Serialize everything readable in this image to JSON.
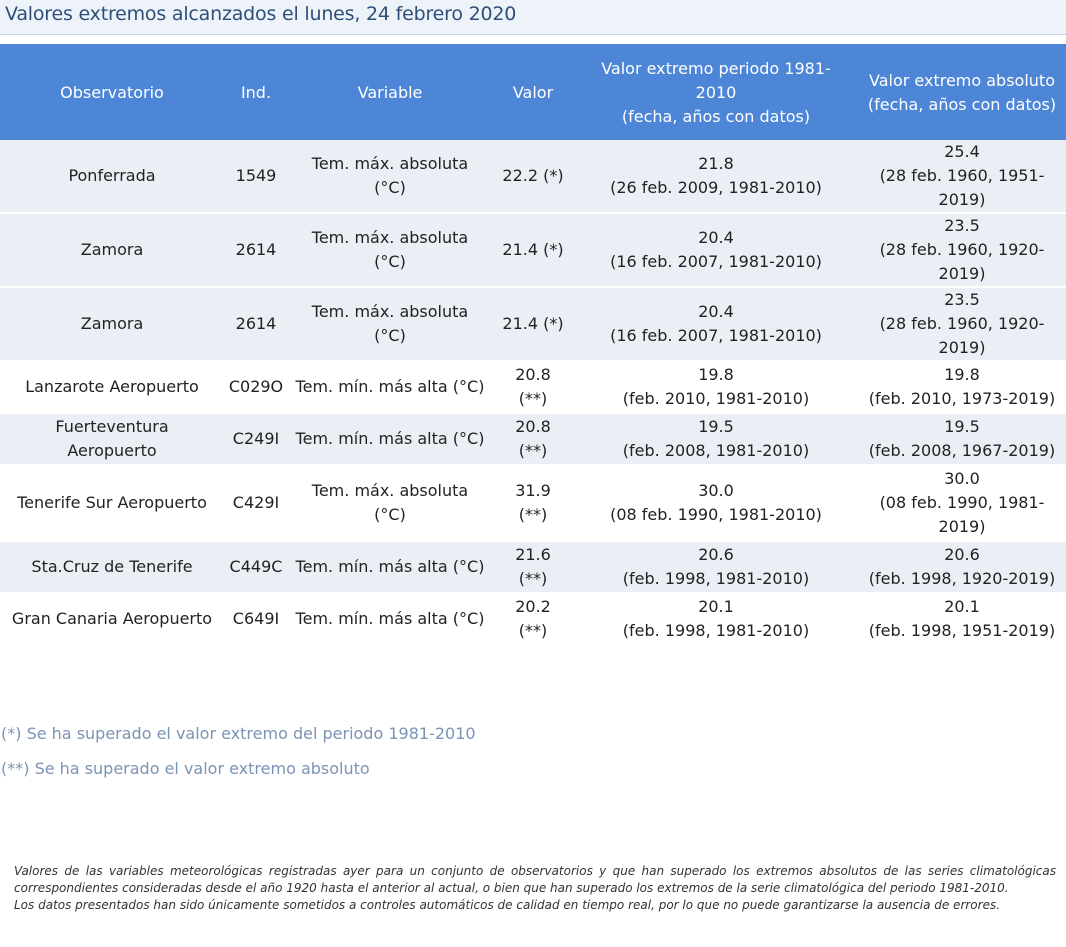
{
  "title": "Valores extremos alcanzados el lunes, 24 febrero 2020",
  "table": {
    "headers": [
      "Observatorio",
      "Ind.",
      "Variable",
      "Valor",
      "Valor extremo periodo 1981-\n2010\n(fecha, años con datos)",
      "Valor extremo absoluto\n(fecha, años con datos)"
    ],
    "rows": [
      [
        "Ponferrada",
        "1549",
        "Tem. máx. absoluta\n(°C)",
        "22.2 (*)",
        "21.8\n(26 feb. 2009, 1981-2010)",
        "25.4\n(28 feb. 1960, 1951-\n2019)"
      ],
      [
        "Zamora",
        "2614",
        "Tem. máx. absoluta\n(°C)",
        "21.4 (*)",
        "20.4\n(16 feb. 2007, 1981-2010)",
        "23.5\n(28 feb. 1960, 1920-\n2019)"
      ],
      [
        "Zamora",
        "2614",
        "Tem. máx. absoluta\n(°C)",
        "21.4 (*)",
        "20.4\n(16 feb. 2007, 1981-2010)",
        "23.5\n(28 feb. 1960, 1920-\n2019)"
      ],
      [
        "Lanzarote Aeropuerto",
        "C029O",
        "Tem. mín. más alta (°C)",
        "20.8\n(**)",
        "19.8\n(feb. 2010, 1981-2010)",
        "19.8\n(feb. 2010, 1973-2019)"
      ],
      [
        "Fuerteventura\nAeropuerto",
        "C249I",
        "Tem. mín. más alta (°C)",
        "20.8\n(**)",
        "19.5\n(feb. 2008, 1981-2010)",
        "19.5\n(feb. 2008, 1967-2019)"
      ],
      [
        "Tenerife Sur Aeropuerto",
        "C429I",
        "Tem. máx. absoluta\n(°C)",
        "31.9\n(**)",
        "30.0\n(08 feb. 1990, 1981-2010)",
        "30.0\n(08 feb. 1990, 1981-\n2019)"
      ],
      [
        "Sta.Cruz de Tenerife",
        "C449C",
        "Tem. mín. más alta (°C)",
        "21.6\n(**)",
        "20.6\n(feb. 1998, 1981-2010)",
        "20.6\n(feb. 1998, 1920-2019)"
      ],
      [
        "Gran Canaria Aeropuerto",
        "C649I",
        "Tem. mín. más alta (°C)",
        "20.2\n(**)",
        "20.1\n(feb. 1998, 1981-2010)",
        "20.1\n(feb. 1998, 1951-2019)"
      ]
    ]
  },
  "notes": [
    "(*) Se ha superado el valor extremo del periodo 1981-2010",
    "(**) Se ha superado el valor extremo absoluto"
  ],
  "footnote": [
    "Valores de las variables meteorológicas registradas ayer para un conjunto de observatorios y que han superado los extremos absolutos de las series climatológicas correspondientes consideradas desde el año 1920 hasta el anterior al actual, o bien que han superado los extremos de la serie climatológica del periodo 1981-2010.",
    "Los datos presentados han sido únicamente sometidos a controles automáticos de calidad en tiempo real, por lo que no puede garantizarse la ausencia de errores."
  ],
  "colors": {
    "header_bg": "#4d86d6",
    "row_shade": "#e9eff5",
    "title_text": "#2d4f7a",
    "notes_text": "#7b93b4"
  }
}
